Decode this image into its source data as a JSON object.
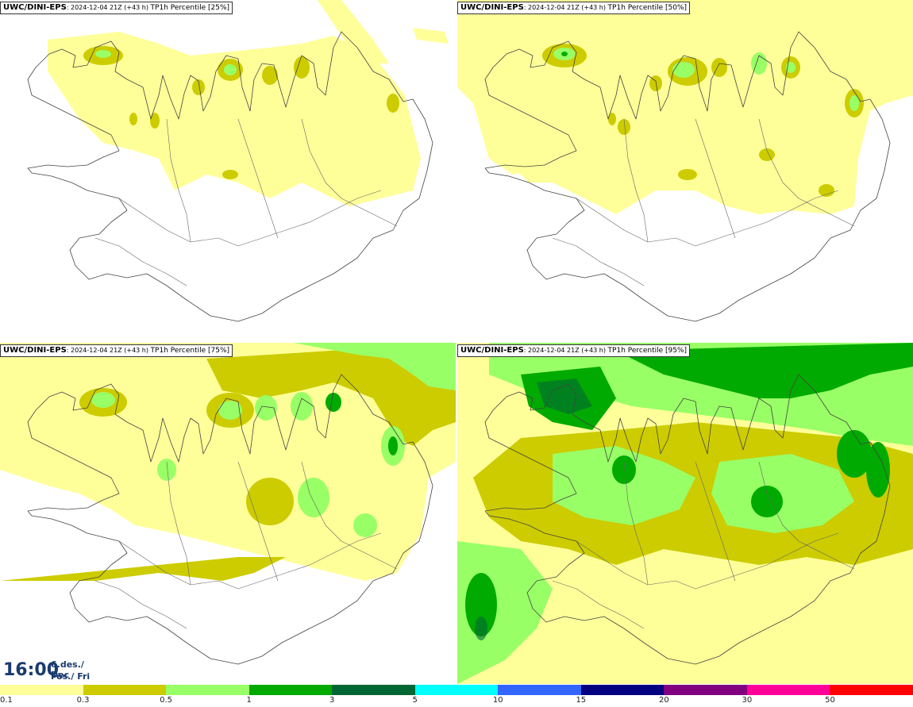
{
  "panels": [
    {
      "model": "UWC/DINI-EPS",
      "run_info": ": 2024-12-04 21Z",
      "lead": "(+43 h)",
      "label": "TP1h Percentile [25%]"
    },
    {
      "model": "UWC/DINI-EPS",
      "run_info": ": 2024-12-04 21Z",
      "lead": "(+43 h)",
      "label": "TP1h Percentile [50%]"
    },
    {
      "model": "UWC/DINI-EPS",
      "run_info": ": 2024-12-04 21Z",
      "lead": "(+43 h)",
      "label": "TP1h Percentile [75%]"
    },
    {
      "model": "UWC/DINI-EPS",
      "run_info": ": 2024-12-04 21Z",
      "lead": "(+43 h)",
      "label": "TP1h Percentile [95%]"
    }
  ],
  "valid_time": {
    "time": "16:00",
    "date": "6.des./ Dec",
    "day": "Fös./ Fri"
  },
  "legend": {
    "labels": [
      "0.1",
      "0.3",
      "0.5",
      "1",
      "3",
      "5",
      "10",
      "15",
      "20",
      "30",
      "50"
    ],
    "colors": [
      "#ffff99",
      "#cccc00",
      "#99ff66",
      "#00aa00",
      "#006633",
      "#00ffff",
      "#3366ff",
      "#000080",
      "#800080",
      "#ff0099",
      "#ff0000"
    ]
  },
  "colors": {
    "very_light": "#ffff99",
    "light": "#cccc00",
    "medium": "#99ff66",
    "moderate": "#00aa00",
    "heavy": "#006633"
  }
}
